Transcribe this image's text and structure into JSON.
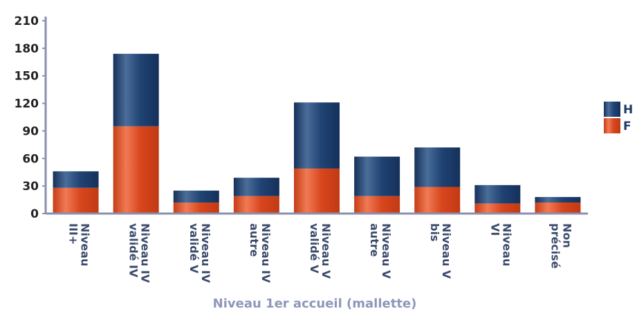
{
  "chart_data": {
    "type": "bar",
    "stacked": true,
    "categories": [
      "Niveau III+",
      "Niveau IV validé IV",
      "Niveau IV validé V",
      "Niveau IV autre",
      "Niveau V validé V",
      "Niveau V autre",
      "Niveau V bis",
      "Niveau VI",
      "Non précisé"
    ],
    "series": [
      {
        "name": "F",
        "color": "#d9451c",
        "values": [
          28,
          95,
          12,
          19,
          49,
          19,
          29,
          11,
          12
        ]
      },
      {
        "name": "H",
        "color": "#1d3f6e",
        "values": [
          18,
          79,
          13,
          20,
          72,
          43,
          43,
          20,
          6
        ]
      }
    ],
    "xlabel": "Niveau 1er accueil (mallette)",
    "ylabel": "",
    "ylim": [
      0,
      210
    ],
    "yticks": [
      "0",
      "30",
      "60",
      "90",
      "120",
      "150",
      "180",
      "210"
    ],
    "legend_position": "right",
    "grid": false
  }
}
